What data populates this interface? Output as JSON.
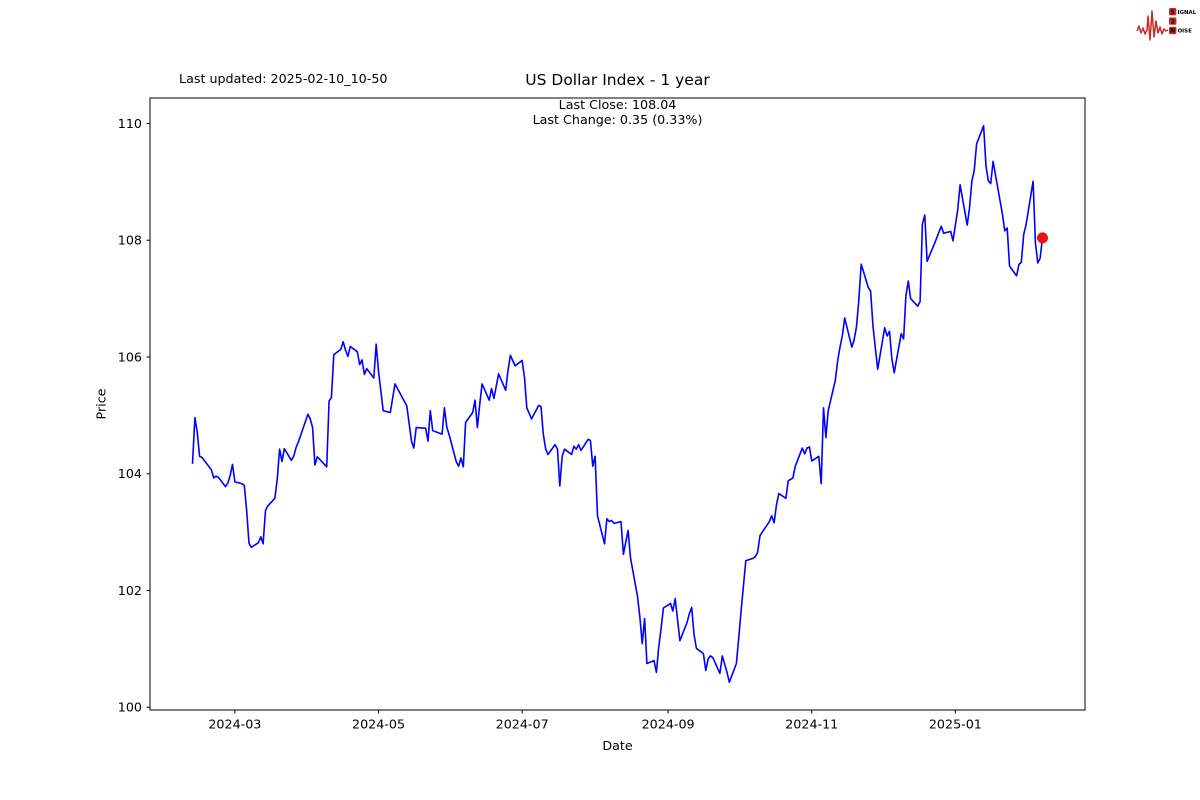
{
  "header": {
    "last_updated": "Last updated: 2025-02-10_10-50",
    "subtitle_line1": "Last Close: 108.04",
    "subtitle_line2": "Last Change: 0.35 (0.33%)",
    "logo": {
      "row1_badge": "S",
      "row1_rest": "IGNAL",
      "row2_badge": "2",
      "row3_badge": "N",
      "row3_rest": "OISE",
      "color": "#c22d2d"
    }
  },
  "chart_data": {
    "type": "line",
    "title": "US Dollar Index - 1 year",
    "xlabel": "Date",
    "ylabel": "Price",
    "last_close": 108.04,
    "last_change": "0.35 (0.33%)",
    "line_color": "#0000ff",
    "marker_color": "#ee1111",
    "axis_color": "#000000",
    "grid": false,
    "legend": "none",
    "x_tick_labels": [
      "2024-03",
      "2024-05",
      "2024-07",
      "2024-09",
      "2024-11",
      "2025-01"
    ],
    "y_ticks": [
      100,
      102,
      104,
      106,
      108,
      110
    ],
    "ylim_data": [
      100.43,
      109.96
    ],
    "series": [
      {
        "name": "US Dollar Index",
        "points": [
          [
            "2024-02-12",
            104.17
          ],
          [
            "2024-02-13",
            104.96
          ],
          [
            "2024-02-14",
            104.72
          ],
          [
            "2024-02-15",
            104.3
          ],
          [
            "2024-02-16",
            104.28
          ],
          [
            "2024-02-20",
            104.07
          ],
          [
            "2024-02-21",
            103.93
          ],
          [
            "2024-02-22",
            103.96
          ],
          [
            "2024-02-23",
            103.94
          ],
          [
            "2024-02-26",
            103.78
          ],
          [
            "2024-02-27",
            103.84
          ],
          [
            "2024-02-28",
            103.97
          ],
          [
            "2024-02-29",
            104.16
          ],
          [
            "2024-03-01",
            103.86
          ],
          [
            "2024-03-04",
            103.83
          ],
          [
            "2024-03-05",
            103.8
          ],
          [
            "2024-03-06",
            103.36
          ],
          [
            "2024-03-07",
            102.81
          ],
          [
            "2024-03-08",
            102.74
          ],
          [
            "2024-03-11",
            102.82
          ],
          [
            "2024-03-12",
            102.92
          ],
          [
            "2024-03-13",
            102.8
          ],
          [
            "2024-03-14",
            103.37
          ],
          [
            "2024-03-15",
            103.45
          ],
          [
            "2024-03-18",
            103.58
          ],
          [
            "2024-03-19",
            103.92
          ],
          [
            "2024-03-20",
            104.42
          ],
          [
            "2024-03-21",
            104.21
          ],
          [
            "2024-03-22",
            104.43
          ],
          [
            "2024-03-25",
            104.23
          ],
          [
            "2024-03-26",
            104.3
          ],
          [
            "2024-03-27",
            104.45
          ],
          [
            "2024-03-28",
            104.55
          ],
          [
            "2024-04-01",
            105.02
          ],
          [
            "2024-04-02",
            104.94
          ],
          [
            "2024-04-03",
            104.79
          ],
          [
            "2024-04-04",
            104.15
          ],
          [
            "2024-04-05",
            104.29
          ],
          [
            "2024-04-09",
            104.12
          ],
          [
            "2024-04-10",
            105.25
          ],
          [
            "2024-04-11",
            105.3
          ],
          [
            "2024-04-12",
            106.04
          ],
          [
            "2024-04-15",
            106.13
          ],
          [
            "2024-04-16",
            106.26
          ],
          [
            "2024-04-17",
            106.12
          ],
          [
            "2024-04-18",
            106.01
          ],
          [
            "2024-04-19",
            106.18
          ],
          [
            "2024-04-22",
            106.09
          ],
          [
            "2024-04-23",
            105.87
          ],
          [
            "2024-04-24",
            105.95
          ],
          [
            "2024-04-25",
            105.7
          ],
          [
            "2024-04-26",
            105.8
          ],
          [
            "2024-04-29",
            105.64
          ],
          [
            "2024-04-30",
            106.22
          ],
          [
            "2024-05-01",
            105.76
          ],
          [
            "2024-05-03",
            105.08
          ],
          [
            "2024-05-06",
            105.05
          ],
          [
            "2024-05-08",
            105.54
          ],
          [
            "2024-05-10",
            105.39
          ],
          [
            "2024-05-13",
            105.16
          ],
          [
            "2024-05-15",
            104.56
          ],
          [
            "2024-05-16",
            104.44
          ],
          [
            "2024-05-17",
            104.79
          ],
          [
            "2024-05-21",
            104.78
          ],
          [
            "2024-05-22",
            104.56
          ],
          [
            "2024-05-23",
            105.08
          ],
          [
            "2024-05-24",
            104.74
          ],
          [
            "2024-05-28",
            104.68
          ],
          [
            "2024-05-29",
            105.13
          ],
          [
            "2024-05-30",
            104.8
          ],
          [
            "2024-05-31",
            104.67
          ],
          [
            "2024-06-03",
            104.21
          ],
          [
            "2024-06-04",
            104.13
          ],
          [
            "2024-06-05",
            104.27
          ],
          [
            "2024-06-06",
            104.12
          ],
          [
            "2024-06-07",
            104.88
          ],
          [
            "2024-06-10",
            105.05
          ],
          [
            "2024-06-11",
            105.26
          ],
          [
            "2024-06-12",
            104.79
          ],
          [
            "2024-06-13",
            105.2
          ],
          [
            "2024-06-14",
            105.54
          ],
          [
            "2024-06-17",
            105.26
          ],
          [
            "2024-06-18",
            105.46
          ],
          [
            "2024-06-19",
            105.29
          ],
          [
            "2024-06-21",
            105.71
          ],
          [
            "2024-06-24",
            105.43
          ],
          [
            "2024-06-25",
            105.77
          ],
          [
            "2024-06-26",
            106.03
          ],
          [
            "2024-06-27",
            105.94
          ],
          [
            "2024-06-28",
            105.85
          ],
          [
            "2024-07-01",
            105.94
          ],
          [
            "2024-07-02",
            105.65
          ],
          [
            "2024-07-03",
            105.13
          ],
          [
            "2024-07-05",
            104.94
          ],
          [
            "2024-07-08",
            105.17
          ],
          [
            "2024-07-09",
            105.15
          ],
          [
            "2024-07-10",
            104.68
          ],
          [
            "2024-07-11",
            104.42
          ],
          [
            "2024-07-12",
            104.33
          ],
          [
            "2024-07-15",
            104.5
          ],
          [
            "2024-07-16",
            104.42
          ],
          [
            "2024-07-17",
            103.79
          ],
          [
            "2024-07-18",
            104.3
          ],
          [
            "2024-07-19",
            104.42
          ],
          [
            "2024-07-22",
            104.33
          ],
          [
            "2024-07-23",
            104.47
          ],
          [
            "2024-07-24",
            104.42
          ],
          [
            "2024-07-25",
            104.5
          ],
          [
            "2024-07-26",
            104.4
          ],
          [
            "2024-07-29",
            104.59
          ],
          [
            "2024-07-30",
            104.57
          ],
          [
            "2024-07-31",
            104.13
          ],
          [
            "2024-08-01",
            104.3
          ],
          [
            "2024-08-02",
            103.28
          ],
          [
            "2024-08-05",
            102.8
          ],
          [
            "2024-08-06",
            103.23
          ],
          [
            "2024-08-07",
            103.18
          ],
          [
            "2024-08-08",
            103.2
          ],
          [
            "2024-08-09",
            103.15
          ],
          [
            "2024-08-12",
            103.18
          ],
          [
            "2024-08-13",
            102.62
          ],
          [
            "2024-08-15",
            103.03
          ],
          [
            "2024-08-16",
            102.56
          ],
          [
            "2024-08-19",
            101.9
          ],
          [
            "2024-08-20",
            101.54
          ],
          [
            "2024-08-21",
            101.09
          ],
          [
            "2024-08-22",
            101.52
          ],
          [
            "2024-08-23",
            100.75
          ],
          [
            "2024-08-26",
            100.8
          ],
          [
            "2024-08-27",
            100.6
          ],
          [
            "2024-08-28",
            101.03
          ],
          [
            "2024-08-29",
            101.35
          ],
          [
            "2024-08-30",
            101.7
          ],
          [
            "2024-09-02",
            101.78
          ],
          [
            "2024-09-03",
            101.65
          ],
          [
            "2024-09-04",
            101.86
          ],
          [
            "2024-09-06",
            101.14
          ],
          [
            "2024-09-09",
            101.45
          ],
          [
            "2024-09-10",
            101.6
          ],
          [
            "2024-09-11",
            101.71
          ],
          [
            "2024-09-12",
            101.25
          ],
          [
            "2024-09-13",
            101.01
          ],
          [
            "2024-09-16",
            100.92
          ],
          [
            "2024-09-17",
            100.63
          ],
          [
            "2024-09-18",
            100.83
          ],
          [
            "2024-09-19",
            100.88
          ],
          [
            "2024-09-20",
            100.85
          ],
          [
            "2024-09-23",
            100.58
          ],
          [
            "2024-09-24",
            100.88
          ],
          [
            "2024-09-26",
            100.6
          ],
          [
            "2024-09-27",
            100.43
          ],
          [
            "2024-09-30",
            100.75
          ],
          [
            "2024-10-01",
            101.2
          ],
          [
            "2024-10-02",
            101.65
          ],
          [
            "2024-10-04",
            102.51
          ],
          [
            "2024-10-07",
            102.55
          ],
          [
            "2024-10-08",
            102.58
          ],
          [
            "2024-10-09",
            102.65
          ],
          [
            "2024-10-10",
            102.94
          ],
          [
            "2024-10-11",
            103.0
          ],
          [
            "2024-10-14",
            103.18
          ],
          [
            "2024-10-15",
            103.28
          ],
          [
            "2024-10-16",
            103.16
          ],
          [
            "2024-10-17",
            103.46
          ],
          [
            "2024-10-18",
            103.66
          ],
          [
            "2024-10-21",
            103.58
          ],
          [
            "2024-10-22",
            103.88
          ],
          [
            "2024-10-24",
            103.93
          ],
          [
            "2024-10-25",
            104.13
          ],
          [
            "2024-10-28",
            104.44
          ],
          [
            "2024-10-29",
            104.34
          ],
          [
            "2024-10-30",
            104.44
          ],
          [
            "2024-10-31",
            104.46
          ],
          [
            "2024-11-01",
            104.22
          ],
          [
            "2024-11-04",
            104.3
          ],
          [
            "2024-11-05",
            103.83
          ],
          [
            "2024-11-06",
            105.13
          ],
          [
            "2024-11-07",
            104.62
          ],
          [
            "2024-11-08",
            105.08
          ],
          [
            "2024-11-11",
            105.6
          ],
          [
            "2024-11-12",
            105.94
          ],
          [
            "2024-11-13",
            106.17
          ],
          [
            "2024-11-14",
            106.37
          ],
          [
            "2024-11-15",
            106.67
          ],
          [
            "2024-11-18",
            106.17
          ],
          [
            "2024-11-19",
            106.29
          ],
          [
            "2024-11-20",
            106.52
          ],
          [
            "2024-11-21",
            106.97
          ],
          [
            "2024-11-22",
            107.59
          ],
          [
            "2024-11-25",
            107.19
          ],
          [
            "2024-11-26",
            107.13
          ],
          [
            "2024-11-27",
            106.53
          ],
          [
            "2024-11-28",
            106.16
          ],
          [
            "2024-11-29",
            105.79
          ],
          [
            "2024-12-02",
            106.5
          ],
          [
            "2024-12-03",
            106.36
          ],
          [
            "2024-12-04",
            106.44
          ],
          [
            "2024-12-05",
            105.98
          ],
          [
            "2024-12-06",
            105.73
          ],
          [
            "2024-12-09",
            106.4
          ],
          [
            "2024-12-10",
            106.31
          ],
          [
            "2024-12-11",
            107.05
          ],
          [
            "2024-12-12",
            107.3
          ],
          [
            "2024-12-13",
            107.0
          ],
          [
            "2024-12-16",
            106.87
          ],
          [
            "2024-12-17",
            106.95
          ],
          [
            "2024-12-18",
            108.28
          ],
          [
            "2024-12-19",
            108.43
          ],
          [
            "2024-12-20",
            107.64
          ],
          [
            "2024-12-23",
            107.93
          ],
          [
            "2024-12-26",
            108.24
          ],
          [
            "2024-12-27",
            108.12
          ],
          [
            "2024-12-30",
            108.15
          ],
          [
            "2024-12-31",
            107.99
          ],
          [
            "2025-01-02",
            108.52
          ],
          [
            "2025-01-03",
            108.95
          ],
          [
            "2025-01-06",
            108.26
          ],
          [
            "2025-01-07",
            108.55
          ],
          [
            "2025-01-08",
            109.02
          ],
          [
            "2025-01-09",
            109.19
          ],
          [
            "2025-01-10",
            109.65
          ],
          [
            "2025-01-13",
            109.96
          ],
          [
            "2025-01-14",
            109.27
          ],
          [
            "2025-01-15",
            109.02
          ],
          [
            "2025-01-16",
            108.97
          ],
          [
            "2025-01-17",
            109.35
          ],
          [
            "2025-01-21",
            108.44
          ],
          [
            "2025-01-22",
            108.16
          ],
          [
            "2025-01-23",
            108.21
          ],
          [
            "2025-01-24",
            107.56
          ],
          [
            "2025-01-27",
            107.39
          ],
          [
            "2025-01-28",
            107.59
          ],
          [
            "2025-01-29",
            107.62
          ],
          [
            "2025-01-30",
            108.1
          ],
          [
            "2025-01-31",
            108.26
          ],
          [
            "2025-02-03",
            109.01
          ],
          [
            "2025-02-04",
            107.96
          ],
          [
            "2025-02-05",
            107.61
          ],
          [
            "2025-02-06",
            107.69
          ],
          [
            "2025-02-07",
            108.04
          ]
        ]
      }
    ]
  }
}
